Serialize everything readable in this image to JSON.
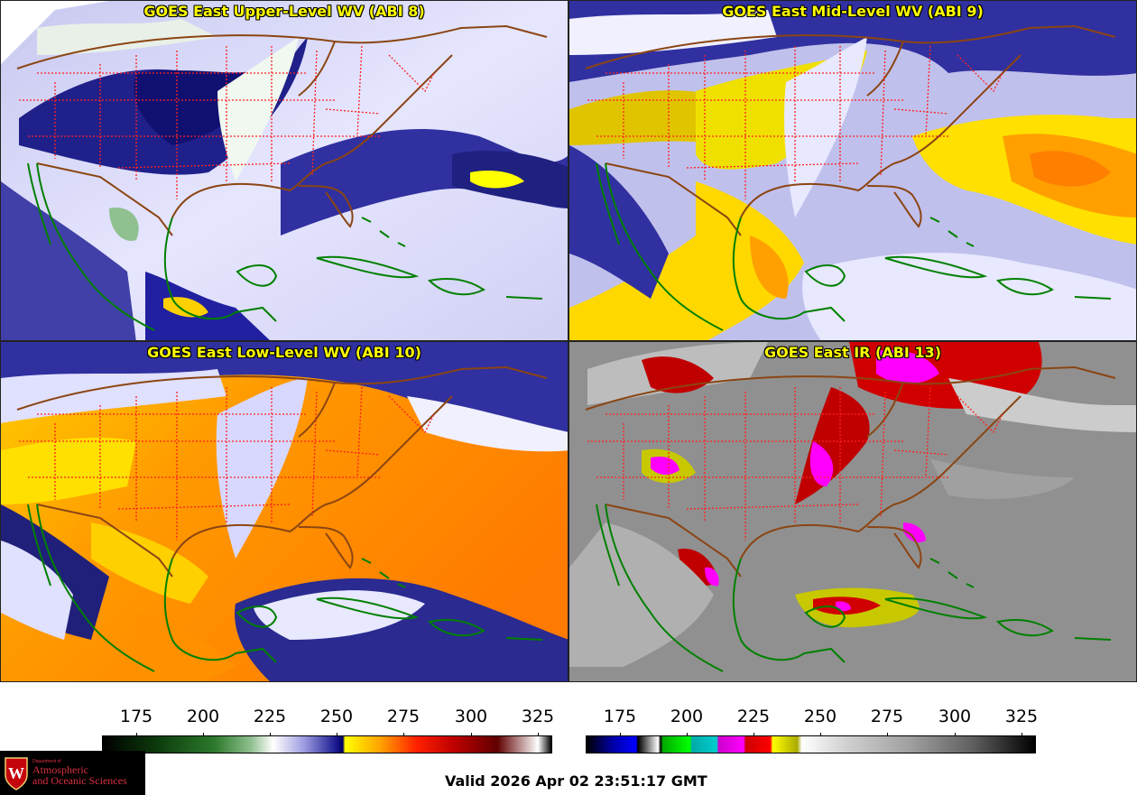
{
  "panels": [
    {
      "title": "GOES East Upper-Level WV (ABI 8)"
    },
    {
      "title": "GOES East Mid-Level WV (ABI 9)"
    },
    {
      "title": "GOES East Low-Level WV (ABI 10)"
    },
    {
      "title": "GOES East IR (ABI 13)"
    }
  ],
  "colorbars": {
    "wv": {
      "ticks": [
        "175",
        "200",
        "225",
        "250",
        "275",
        "300",
        "325"
      ]
    },
    "ir": {
      "ticks": [
        "175",
        "200",
        "225",
        "250",
        "275",
        "300",
        "325"
      ]
    }
  },
  "footer": {
    "valid": "Valid 2026 Apr 02 23:51:17 GMT",
    "logo": {
      "department": "Department of",
      "line1": "Atmospheric",
      "line2": "and Oceanic Sciences"
    }
  },
  "colors": {
    "state_borders": "#ff2020",
    "country_borders": "#8b4513",
    "coastline": "#008000",
    "title_text": "#ffff00"
  },
  "icons": [
    "university-shield-icon"
  ]
}
